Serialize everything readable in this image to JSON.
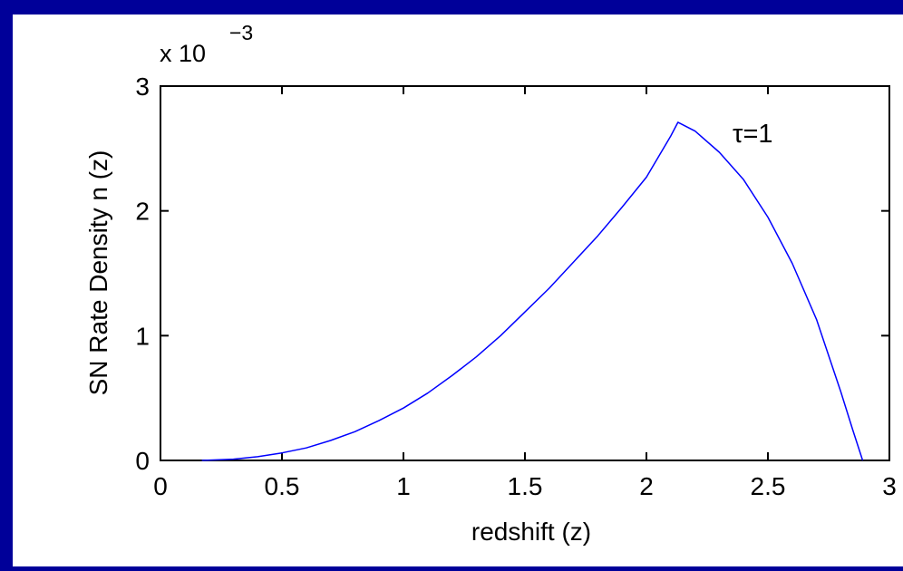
{
  "chart_data": {
    "type": "line",
    "title": "",
    "xlabel": "redshift (z)",
    "ylabel": "SN Rate Density n (z)",
    "xlim": [
      0,
      3
    ],
    "ylim": [
      0,
      3
    ],
    "xticks": [
      "0",
      "0.5",
      "1",
      "1.5",
      "2",
      "2.5",
      "3"
    ],
    "yticks": [
      "0",
      "1",
      "2",
      "3"
    ],
    "y_multiplier": {
      "base": "x 10",
      "exponent": "−3"
    },
    "grid": false,
    "annotation": "τ=1",
    "series": [
      {
        "color": "#0000ff",
        "x": [
          0.17,
          0.3,
          0.4,
          0.5,
          0.6,
          0.7,
          0.8,
          0.9,
          1.0,
          1.1,
          1.2,
          1.3,
          1.4,
          1.5,
          1.6,
          1.7,
          1.8,
          1.9,
          2.0,
          2.1,
          2.13,
          2.2,
          2.3,
          2.4,
          2.5,
          2.6,
          2.7,
          2.8,
          2.85,
          2.89
        ],
        "y": [
          0.0,
          0.01,
          0.03,
          0.06,
          0.1,
          0.16,
          0.23,
          0.32,
          0.42,
          0.54,
          0.68,
          0.83,
          1.0,
          1.19,
          1.38,
          1.59,
          1.8,
          2.03,
          2.27,
          2.6,
          2.71,
          2.64,
          2.47,
          2.25,
          1.95,
          1.58,
          1.13,
          0.55,
          0.24,
          0.0
        ]
      }
    ]
  }
}
